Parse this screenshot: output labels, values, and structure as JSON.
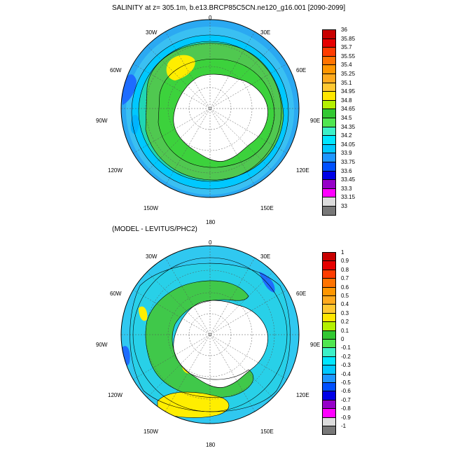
{
  "panel1": {
    "title": "SALINITY at z= 305.1m, b.e13.BRCP85C5CN.ne120_g16.001 [2090-2099]",
    "lon_labels": {
      "n0": "0",
      "e30": "30E",
      "e60": "60E",
      "e90": "90E",
      "e120": "120E",
      "e150": "150E",
      "s180": "180",
      "w150": "150W",
      "w120": "120W",
      "w90": "90W",
      "w60": "60W",
      "w30": "30W"
    },
    "colorbar": {
      "labels": [
        "36",
        "35.85",
        "35.7",
        "35.55",
        "35.4",
        "35.25",
        "35.1",
        "34.95",
        "34.8",
        "34.65",
        "34.5",
        "34.35",
        "34.2",
        "34.05",
        "33.9",
        "33.75",
        "33.6",
        "33.45",
        "33.3",
        "33.15",
        "33"
      ],
      "colors": [
        "#c80000",
        "#e60000",
        "#ff3c00",
        "#ff7300",
        "#ff9600",
        "#ffaa1e",
        "#ffc832",
        "#ffe600",
        "#b4f000",
        "#32c832",
        "#50e650",
        "#3cf0c8",
        "#00e6ff",
        "#00c8ff",
        "#1e96ff",
        "#0050ff",
        "#0000e6",
        "#9600c8",
        "#ff00ff",
        "#dcdcdc",
        "#787878"
      ]
    }
  },
  "panel2": {
    "title": "(MODEL - LEVITUS/PHC2)",
    "lon_labels": {
      "n0": "0",
      "e30": "30E",
      "e60": "60E",
      "e90": "90E",
      "e120": "120E",
      "e150": "150E",
      "s180": "180",
      "w150": "150W",
      "w120": "120W",
      "w90": "90W",
      "w60": "60W",
      "w30": "30W"
    },
    "colorbar": {
      "labels": [
        "1",
        "0.9",
        "0.8",
        "0.7",
        "0.6",
        "0.5",
        "0.4",
        "0.3",
        "0.2",
        "0.1",
        "0",
        "-0.1",
        "-0.2",
        "-0.3",
        "-0.4",
        "-0.5",
        "-0.6",
        "-0.7",
        "-0.8",
        "-0.9",
        "-1"
      ],
      "colors": [
        "#c80000",
        "#e60000",
        "#ff3c00",
        "#ff7300",
        "#ff9600",
        "#ffaa1e",
        "#ffc832",
        "#ffe600",
        "#b4f000",
        "#32c832",
        "#50e650",
        "#3cf0c8",
        "#00e6ff",
        "#00c8ff",
        "#1e96ff",
        "#0050ff",
        "#0000e6",
        "#9600c8",
        "#ff00ff",
        "#dcdcdc",
        "#787878"
      ]
    }
  }
}
